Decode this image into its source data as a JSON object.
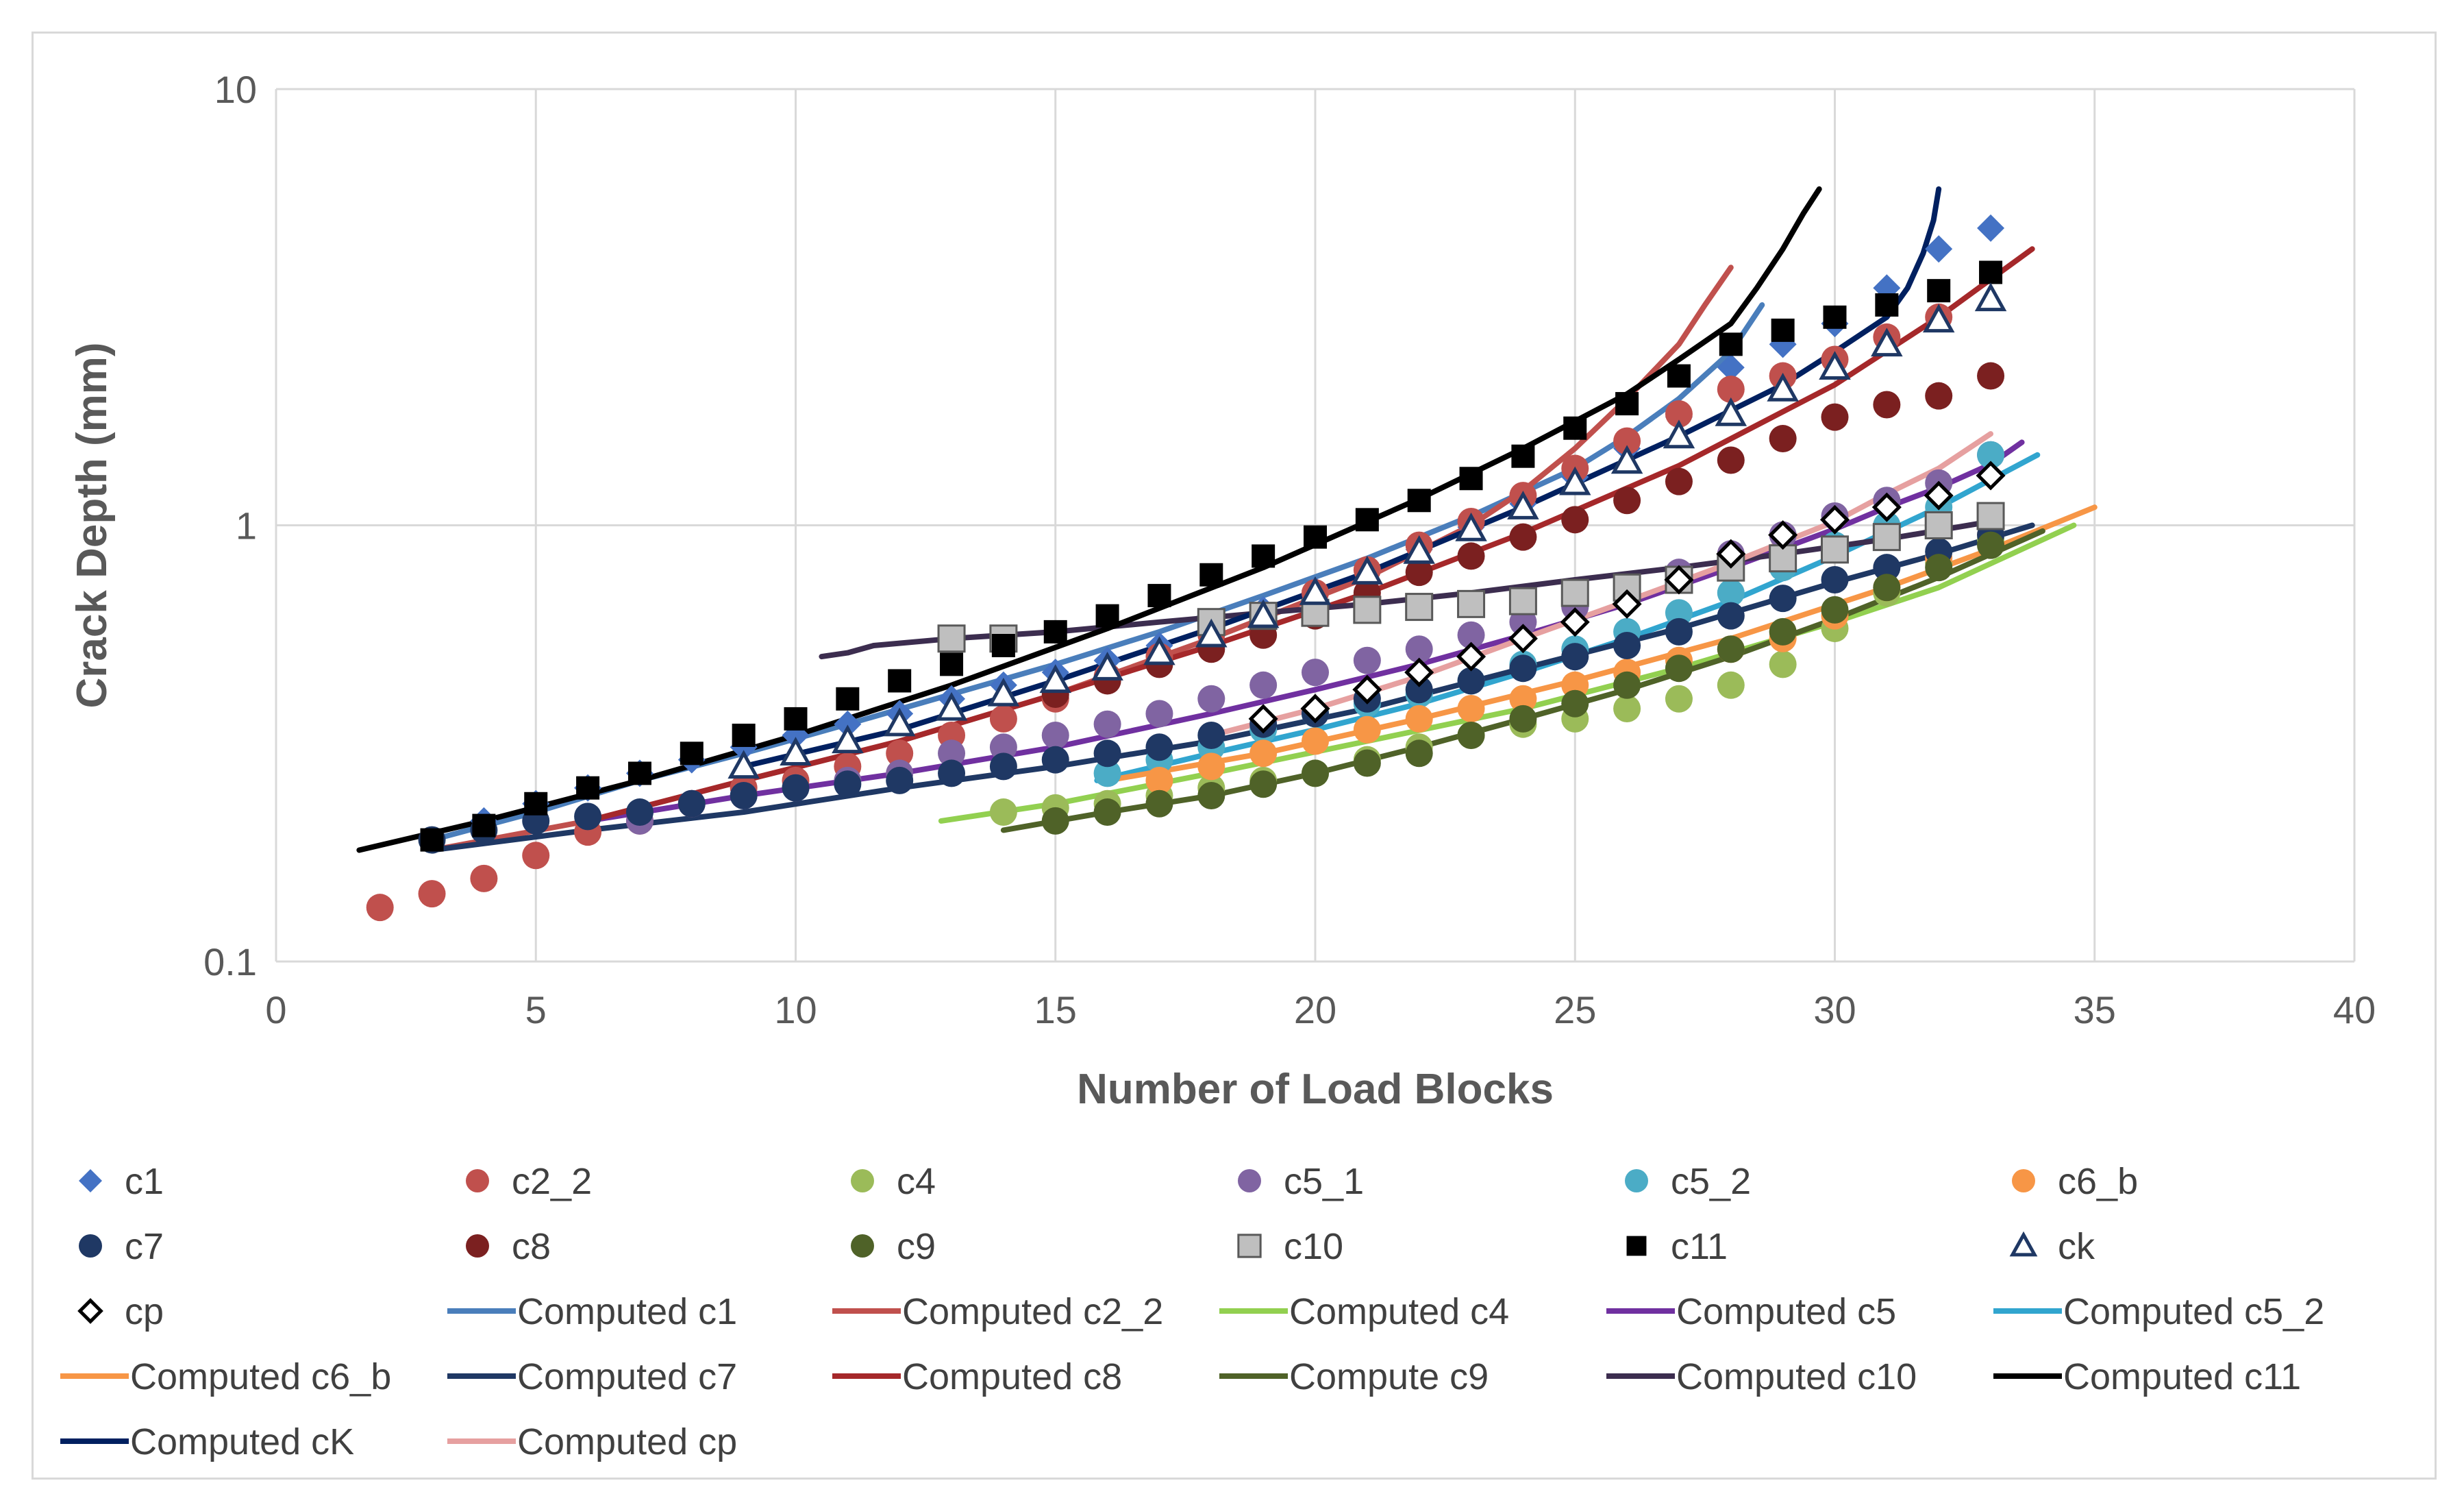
{
  "chart_data": {
    "type": "scatter",
    "title": "",
    "xlabel": "Number of Load Blocks",
    "ylabel": "Crack Depth (mm)",
    "xlim": [
      0,
      40
    ],
    "ylim": [
      0.1,
      10
    ],
    "yscale": "log",
    "grid": true,
    "legend_position": "bottom",
    "x_ticks": [
      0,
      5,
      10,
      15,
      20,
      25,
      30,
      35,
      40
    ],
    "x_tick_labels": [
      "0",
      "5",
      "10",
      "15",
      "20",
      "25",
      "30",
      "35",
      "40"
    ],
    "y_ticks": [
      0.1,
      1,
      10
    ],
    "y_tick_labels": [
      "0.1",
      "1",
      "10"
    ],
    "series": [
      {
        "name": "c1",
        "kind": "marker",
        "marker": "diamond",
        "color": "#4472c4",
        "x": [
          3,
          4,
          5,
          6,
          7,
          8,
          9,
          10,
          11,
          12,
          13,
          14,
          15,
          16,
          17,
          18,
          19,
          20,
          21,
          22,
          23,
          24,
          25,
          26,
          27,
          28,
          29,
          30,
          31,
          32,
          33
        ],
        "y": [
          0.19,
          0.21,
          0.23,
          0.25,
          0.27,
          0.29,
          0.31,
          0.33,
          0.35,
          0.37,
          0.4,
          0.43,
          0.46,
          0.49,
          0.53,
          0.58,
          0.64,
          0.71,
          0.79,
          0.88,
          0.99,
          1.12,
          1.29,
          1.5,
          1.77,
          2.3,
          2.6,
          2.9,
          3.5,
          4.3,
          4.8
        ]
      },
      {
        "name": "c2_2",
        "kind": "marker",
        "marker": "circle",
        "color": "#c0504d",
        "x": [
          2,
          3,
          4,
          5,
          6,
          7,
          8,
          9,
          10,
          11,
          12,
          13,
          14,
          15,
          16,
          17,
          18,
          19,
          20,
          21,
          22,
          23,
          24,
          25,
          26,
          27,
          28,
          29,
          30,
          31,
          32
        ],
        "y": [
          0.133,
          0.143,
          0.155,
          0.175,
          0.198,
          0.21,
          0.23,
          0.25,
          0.26,
          0.28,
          0.3,
          0.33,
          0.36,
          0.4,
          0.45,
          0.5,
          0.56,
          0.62,
          0.7,
          0.79,
          0.9,
          1.02,
          1.17,
          1.35,
          1.56,
          1.8,
          2.05,
          2.2,
          2.4,
          2.7,
          3.0
        ]
      },
      {
        "name": "c4",
        "kind": "marker",
        "marker": "circle",
        "color": "#9bbb59",
        "x": [
          14,
          15,
          16,
          17,
          18,
          19,
          20,
          21,
          22,
          23,
          24,
          25,
          26,
          27,
          28,
          29,
          30,
          31,
          32,
          33
        ],
        "y": [
          0.22,
          0.225,
          0.23,
          0.24,
          0.25,
          0.26,
          0.27,
          0.29,
          0.31,
          0.33,
          0.35,
          0.36,
          0.38,
          0.4,
          0.43,
          0.48,
          0.58,
          0.7,
          0.82,
          0.93
        ]
      },
      {
        "name": "c5_1",
        "kind": "marker",
        "marker": "circle",
        "color": "#8064a2",
        "x": [
          7,
          8,
          9,
          10,
          11,
          12,
          13,
          14,
          15,
          16,
          17,
          18,
          19,
          20,
          21,
          22,
          23,
          24,
          25,
          26,
          27,
          28,
          29,
          30,
          31,
          32,
          33
        ],
        "y": [
          0.21,
          0.23,
          0.24,
          0.25,
          0.26,
          0.27,
          0.3,
          0.31,
          0.33,
          0.35,
          0.37,
          0.4,
          0.43,
          0.46,
          0.49,
          0.52,
          0.56,
          0.6,
          0.65,
          0.71,
          0.78,
          0.86,
          0.95,
          1.05,
          1.14,
          1.25,
          1.45
        ]
      },
      {
        "name": "c5_2",
        "kind": "marker",
        "marker": "circle",
        "color": "#4bacc6",
        "x": [
          16,
          17,
          18,
          19,
          20,
          21,
          22,
          23,
          24,
          25,
          26,
          27,
          28,
          29,
          30,
          31,
          32,
          33
        ],
        "y": [
          0.27,
          0.29,
          0.31,
          0.34,
          0.37,
          0.39,
          0.41,
          0.44,
          0.48,
          0.52,
          0.57,
          0.63,
          0.7,
          0.8,
          0.9,
          1.0,
          1.1,
          1.45
        ]
      },
      {
        "name": "c6_b",
        "kind": "marker",
        "marker": "circle",
        "color": "#f79646",
        "x": [
          17,
          18,
          19,
          20,
          21,
          22,
          23,
          24,
          25,
          26,
          27,
          28,
          29,
          30,
          31,
          32,
          33
        ],
        "y": [
          0.26,
          0.28,
          0.3,
          0.32,
          0.34,
          0.36,
          0.38,
          0.4,
          0.43,
          0.46,
          0.49,
          0.52,
          0.55,
          0.62,
          0.72,
          0.84,
          0.95
        ]
      },
      {
        "name": "c7",
        "kind": "marker",
        "marker": "circle",
        "color": "#1f3864",
        "x": [
          3,
          4,
          5,
          6,
          7,
          8,
          9,
          10,
          11,
          12,
          13,
          14,
          15,
          16,
          17,
          18,
          19,
          20,
          21,
          22,
          23,
          24,
          25,
          26,
          27,
          28,
          29,
          30,
          31,
          32,
          33
        ],
        "y": [
          0.19,
          0.2,
          0.21,
          0.215,
          0.22,
          0.23,
          0.24,
          0.25,
          0.255,
          0.26,
          0.27,
          0.28,
          0.29,
          0.3,
          0.31,
          0.33,
          0.35,
          0.37,
          0.4,
          0.42,
          0.44,
          0.47,
          0.5,
          0.53,
          0.57,
          0.62,
          0.68,
          0.75,
          0.8,
          0.87,
          0.95
        ]
      },
      {
        "name": "c8",
        "kind": "marker",
        "marker": "circle",
        "color": "#7b2020",
        "x": [
          15,
          16,
          17,
          18,
          19,
          20,
          21,
          22,
          23,
          24,
          25,
          26,
          27,
          28,
          29,
          30,
          31,
          32,
          33
        ],
        "y": [
          0.41,
          0.44,
          0.48,
          0.52,
          0.56,
          0.62,
          0.7,
          0.78,
          0.85,
          0.94,
          1.03,
          1.14,
          1.26,
          1.41,
          1.58,
          1.77,
          1.89,
          1.98,
          2.2
        ]
      },
      {
        "name": "c9",
        "kind": "marker",
        "marker": "circle",
        "color": "#4f6228",
        "x": [
          15,
          16,
          17,
          18,
          19,
          20,
          21,
          22,
          23,
          24,
          25,
          26,
          27,
          28,
          29,
          30,
          31,
          32,
          33
        ],
        "y": [
          0.21,
          0.22,
          0.23,
          0.24,
          0.255,
          0.27,
          0.285,
          0.3,
          0.33,
          0.36,
          0.39,
          0.43,
          0.47,
          0.52,
          0.57,
          0.64,
          0.72,
          0.8,
          0.9
        ]
      },
      {
        "name": "c10",
        "kind": "marker",
        "marker": "square",
        "color": "#bfbfbf",
        "x": [
          13,
          14,
          18,
          19,
          20,
          21,
          22,
          23,
          24,
          25,
          26,
          27,
          28,
          29,
          30,
          31,
          32,
          33
        ],
        "y": [
          0.55,
          0.55,
          0.6,
          0.62,
          0.63,
          0.64,
          0.65,
          0.66,
          0.67,
          0.7,
          0.72,
          0.75,
          0.8,
          0.84,
          0.88,
          0.94,
          1.0,
          1.05
        ]
      },
      {
        "name": "c11",
        "kind": "marker",
        "marker": "square-filled",
        "color": "#000000",
        "x": [
          3,
          4,
          5,
          6,
          7,
          8,
          9,
          10,
          11,
          12,
          13,
          14,
          15,
          16,
          17,
          18,
          19,
          20,
          21,
          22,
          23,
          24,
          25,
          26,
          27,
          28,
          29,
          30,
          31,
          32,
          33
        ],
        "y": [
          0.19,
          0.205,
          0.23,
          0.25,
          0.27,
          0.3,
          0.33,
          0.36,
          0.4,
          0.44,
          0.48,
          0.53,
          0.57,
          0.62,
          0.69,
          0.77,
          0.85,
          0.94,
          1.03,
          1.14,
          1.28,
          1.44,
          1.67,
          1.9,
          2.2,
          2.6,
          2.8,
          3.0,
          3.2,
          3.45,
          3.8
        ]
      },
      {
        "name": "ck",
        "kind": "marker",
        "marker": "triangle",
        "color": "#1f3864",
        "x": [
          9,
          10,
          11,
          12,
          13,
          14,
          15,
          16,
          17,
          18,
          19,
          20,
          21,
          22,
          23,
          24,
          25,
          26,
          27,
          28,
          29,
          30,
          31,
          32,
          33
        ],
        "y": [
          0.28,
          0.3,
          0.32,
          0.35,
          0.38,
          0.41,
          0.44,
          0.47,
          0.51,
          0.56,
          0.62,
          0.7,
          0.78,
          0.87,
          0.98,
          1.1,
          1.25,
          1.4,
          1.6,
          1.8,
          2.05,
          2.3,
          2.6,
          2.95,
          3.3
        ]
      },
      {
        "name": "cp",
        "kind": "marker",
        "marker": "diamond-open",
        "color": "#000000",
        "x": [
          19,
          20,
          21,
          22,
          23,
          24,
          25,
          26,
          27,
          28,
          29,
          30,
          31,
          32,
          33
        ],
        "y": [
          0.36,
          0.38,
          0.42,
          0.46,
          0.5,
          0.55,
          0.6,
          0.66,
          0.75,
          0.86,
          0.95,
          1.03,
          1.1,
          1.17,
          1.3
        ]
      },
      {
        "name": "Computed c1",
        "kind": "line",
        "color": "#4a7ebb",
        "x": [
          3,
          5,
          7,
          9,
          11,
          13,
          15,
          17,
          19,
          21,
          23,
          25,
          26,
          27,
          28,
          28.6
        ],
        "y": [
          0.19,
          0.22,
          0.26,
          0.3,
          0.35,
          0.41,
          0.48,
          0.57,
          0.69,
          0.84,
          1.05,
          1.35,
          1.6,
          1.95,
          2.5,
          3.2
        ]
      },
      {
        "name": "Computed c2_2",
        "kind": "line",
        "color": "#c0504d",
        "x": [
          3,
          6,
          9,
          12,
          15,
          18,
          21,
          23,
          24,
          25,
          26,
          27,
          27.5,
          28
        ],
        "y": [
          0.18,
          0.21,
          0.26,
          0.32,
          0.41,
          0.55,
          0.76,
          1.0,
          1.2,
          1.5,
          1.95,
          2.6,
          3.2,
          3.9
        ]
      },
      {
        "name": "Computed c4",
        "kind": "line",
        "color": "#92d050",
        "x": [
          12.8,
          15,
          18,
          21,
          24,
          27,
          30,
          32,
          34.6
        ],
        "y": [
          0.21,
          0.23,
          0.27,
          0.32,
          0.38,
          0.47,
          0.6,
          0.72,
          1.0
        ]
      },
      {
        "name": "Computed c5",
        "kind": "line",
        "color": "#7030a0",
        "x": [
          6,
          9,
          12,
          15,
          18,
          20,
          22,
          24,
          26,
          28,
          30,
          31,
          32,
          33,
          33.6
        ],
        "y": [
          0.21,
          0.24,
          0.27,
          0.31,
          0.37,
          0.42,
          0.48,
          0.56,
          0.66,
          0.8,
          0.98,
          1.1,
          1.22,
          1.38,
          1.55
        ]
      },
      {
        "name": "Computed c5_2",
        "kind": "line",
        "color": "#31a5cf",
        "x": [
          15.8,
          18,
          20,
          22,
          24,
          26,
          28,
          30,
          32,
          33.9
        ],
        "y": [
          0.26,
          0.3,
          0.34,
          0.39,
          0.46,
          0.55,
          0.67,
          0.85,
          1.1,
          1.45
        ]
      },
      {
        "name": "Computed c6_b",
        "kind": "line",
        "color": "#f79646",
        "x": [
          16,
          19,
          22,
          25,
          28,
          31,
          33,
          35
        ],
        "y": [
          0.26,
          0.3,
          0.36,
          0.44,
          0.55,
          0.72,
          0.88,
          1.1
        ]
      },
      {
        "name": "Computed c7",
        "kind": "line",
        "color": "#1f3864",
        "x": [
          3,
          6,
          9,
          12,
          15,
          18,
          21,
          24,
          27,
          30,
          32,
          33.8
        ],
        "y": [
          0.18,
          0.2,
          0.22,
          0.25,
          0.28,
          0.32,
          0.38,
          0.47,
          0.58,
          0.74,
          0.86,
          1.0
        ]
      },
      {
        "name": "Computed c8",
        "kind": "line",
        "color": "#a5282a",
        "x": [
          6,
          9,
          12,
          15,
          18,
          21,
          24,
          27,
          30,
          32,
          33.8
        ],
        "y": [
          0.21,
          0.26,
          0.32,
          0.41,
          0.53,
          0.7,
          0.96,
          1.37,
          2.1,
          3.0,
          4.3
        ]
      },
      {
        "name": "Compute c9",
        "kind": "line",
        "color": "#4f6228",
        "x": [
          14,
          16,
          18,
          20,
          22,
          24,
          26,
          28,
          30,
          32,
          34
        ],
        "y": [
          0.2,
          0.22,
          0.24,
          0.27,
          0.31,
          0.36,
          0.42,
          0.5,
          0.61,
          0.76,
          0.97
        ]
      },
      {
        "name": "Computed c10",
        "kind": "line",
        "color": "#3c2d4f",
        "x": [
          10.5,
          11,
          11.5,
          13,
          15,
          17,
          19,
          21,
          23,
          25,
          27,
          29,
          31,
          33
        ],
        "y": [
          0.5,
          0.51,
          0.53,
          0.55,
          0.57,
          0.6,
          0.63,
          0.66,
          0.7,
          0.75,
          0.8,
          0.86,
          0.93,
          1.02
        ]
      },
      {
        "name": "Computed c11",
        "kind": "line",
        "color": "#000000",
        "x": [
          1.6,
          4,
          7,
          10,
          13,
          16,
          19,
          22,
          24,
          26,
          27,
          28,
          28.5,
          29,
          29.4,
          29.7
        ],
        "y": [
          0.18,
          0.21,
          0.26,
          0.33,
          0.43,
          0.58,
          0.8,
          1.15,
          1.5,
          2.0,
          2.4,
          2.9,
          3.5,
          4.3,
          5.2,
          5.9
        ]
      },
      {
        "name": "Computed cK",
        "kind": "line",
        "color": "#002060",
        "x": [
          9,
          12,
          15,
          18,
          21,
          24,
          27,
          29,
          30,
          31,
          31.4,
          31.7,
          31.9,
          32
        ],
        "y": [
          0.28,
          0.34,
          0.44,
          0.58,
          0.78,
          1.1,
          1.6,
          2.1,
          2.5,
          3.0,
          3.5,
          4.2,
          5.0,
          5.9
        ]
      },
      {
        "name": "Computed cp",
        "kind": "line",
        "color": "#e6a0a0",
        "x": [
          18,
          20,
          22,
          24,
          26,
          28,
          30,
          31,
          32,
          33
        ],
        "y": [
          0.33,
          0.38,
          0.45,
          0.55,
          0.67,
          0.82,
          1.02,
          1.18,
          1.35,
          1.62
        ]
      }
    ]
  }
}
